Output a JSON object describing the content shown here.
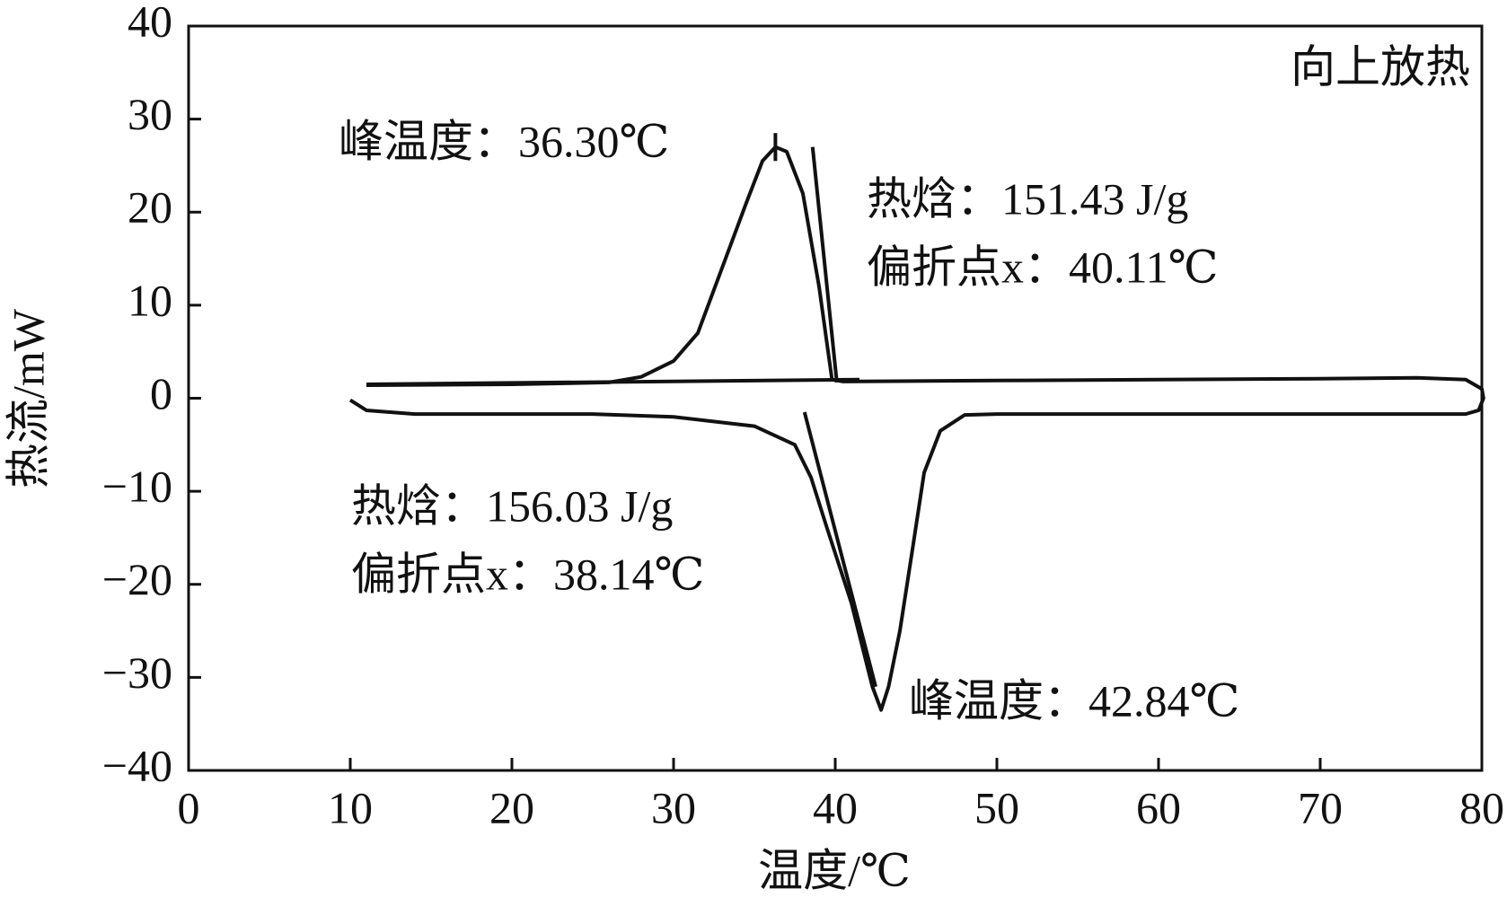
{
  "chart_data": {
    "type": "line",
    "x_label": "温度/℃",
    "y_label": "热流/mW",
    "xlim": [
      0,
      80
    ],
    "xticks": [
      0,
      10,
      20,
      30,
      40,
      50,
      60,
      70,
      80
    ],
    "ylim": [
      -40,
      40
    ],
    "yticks": [
      {
        "value": -40,
        "label": "−40"
      },
      {
        "value": -30,
        "label": "−30"
      },
      {
        "value": -20,
        "label": "−20"
      },
      {
        "value": -10,
        "label": "−10"
      },
      0,
      10,
      20,
      30,
      40
    ],
    "series": [
      {
        "color": "#111111",
        "x": [
          10,
          11,
          14,
          20,
          25,
          30,
          35,
          37.5,
          38.5,
          39.5,
          41,
          42.3,
          42.84,
          43.3,
          44,
          44.8,
          45.5,
          46.5,
          48,
          50,
          60,
          70,
          79,
          79.8,
          80.1,
          80,
          79,
          76,
          70,
          60,
          50,
          40.5,
          39.8,
          39,
          38,
          37,
          36.3,
          35.5,
          34.5,
          33,
          31.5,
          30,
          28,
          26,
          20,
          11
        ],
        "values": [
          -0.2,
          -1.3,
          -1.7,
          -1.7,
          -1.7,
          -2,
          -3,
          -5,
          -8.5,
          -14,
          -22,
          -31,
          -33.5,
          -31,
          -25,
          -16,
          -8,
          -3.5,
          -1.8,
          -1.7,
          -1.7,
          -1.7,
          -1.7,
          -1.3,
          0,
          1,
          2.0,
          2.2,
          2.1,
          2,
          1.9,
          1.8,
          2,
          12,
          22,
          26.5,
          27,
          25.5,
          21,
          14,
          7,
          4,
          2.3,
          1.7,
          1.5,
          1.4
        ]
      },
      {
        "color": "#111111",
        "x": [
          11,
          41.5
        ],
        "values": [
          1.5,
          2
        ]
      },
      {
        "color": "#111111",
        "x": [
          38.6,
          40.1
        ],
        "values": [
          27,
          1.7
        ]
      },
      {
        "color": "#111111",
        "x": [
          38.1,
          42.5
        ],
        "values": [
          -1.5,
          -31
        ]
      },
      {
        "color": "#111111",
        "x": [
          36.3,
          36.3
        ],
        "values": [
          25.5,
          28.5
        ]
      }
    ],
    "annotations": [
      "峰温度：36.30℃",
      "热焓：151.43 J/g",
      "偏折点x：40.11℃",
      "热焓：156.03 J/g",
      "偏折点x：38.14℃",
      "峰温度：42.84℃",
      "向上放热"
    ]
  }
}
